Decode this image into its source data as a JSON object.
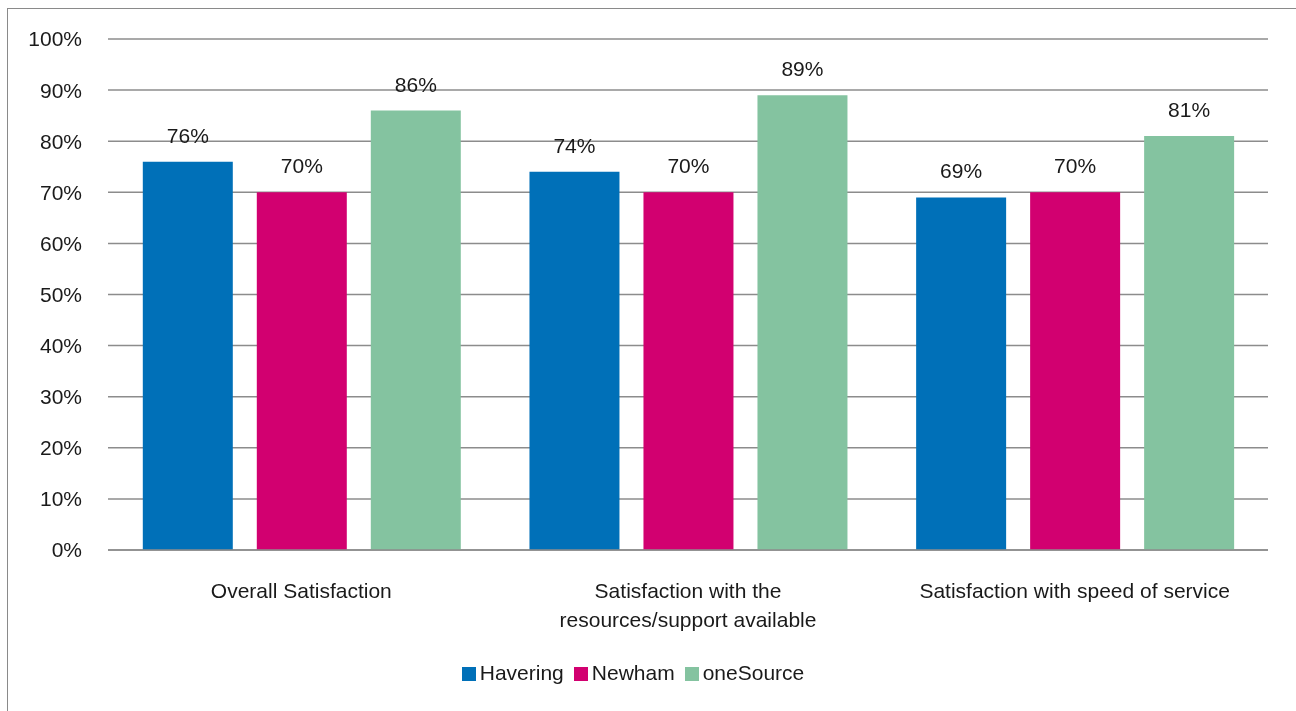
{
  "chart_data": {
    "type": "bar",
    "categories": [
      "Overall Satisfaction",
      "Satisfaction with the resources/support available",
      "Satisfaction with speed of service"
    ],
    "series": [
      {
        "name": "Havering",
        "color": "#0070b8",
        "values": [
          76,
          74,
          69
        ],
        "value_labels": [
          "76%",
          "74%",
          "69%"
        ]
      },
      {
        "name": "Newham",
        "color": "#d20070",
        "values": [
          70,
          70,
          70
        ],
        "value_labels": [
          "70%",
          "70%",
          "70%"
        ]
      },
      {
        "name": "oneSource",
        "color": "#84c3a0",
        "values": [
          86,
          89,
          81
        ],
        "value_labels": [
          "86%",
          "89%",
          "81%"
        ]
      }
    ],
    "ylim": [
      0,
      100
    ],
    "yticks": [
      {
        "value": 0,
        "label": "0%"
      },
      {
        "value": 10,
        "label": "10%"
      },
      {
        "value": 20,
        "label": "20%"
      },
      {
        "value": 30,
        "label": "30%"
      },
      {
        "value": 40,
        "label": "40%"
      },
      {
        "value": 50,
        "label": "50%"
      },
      {
        "value": 60,
        "label": "60%"
      },
      {
        "value": 70,
        "label": "70%"
      },
      {
        "value": 80,
        "label": "80%"
      },
      {
        "value": 90,
        "label": "90%"
      },
      {
        "value": 100,
        "label": "100%"
      }
    ],
    "grid": "y",
    "legend": "bottom"
  }
}
